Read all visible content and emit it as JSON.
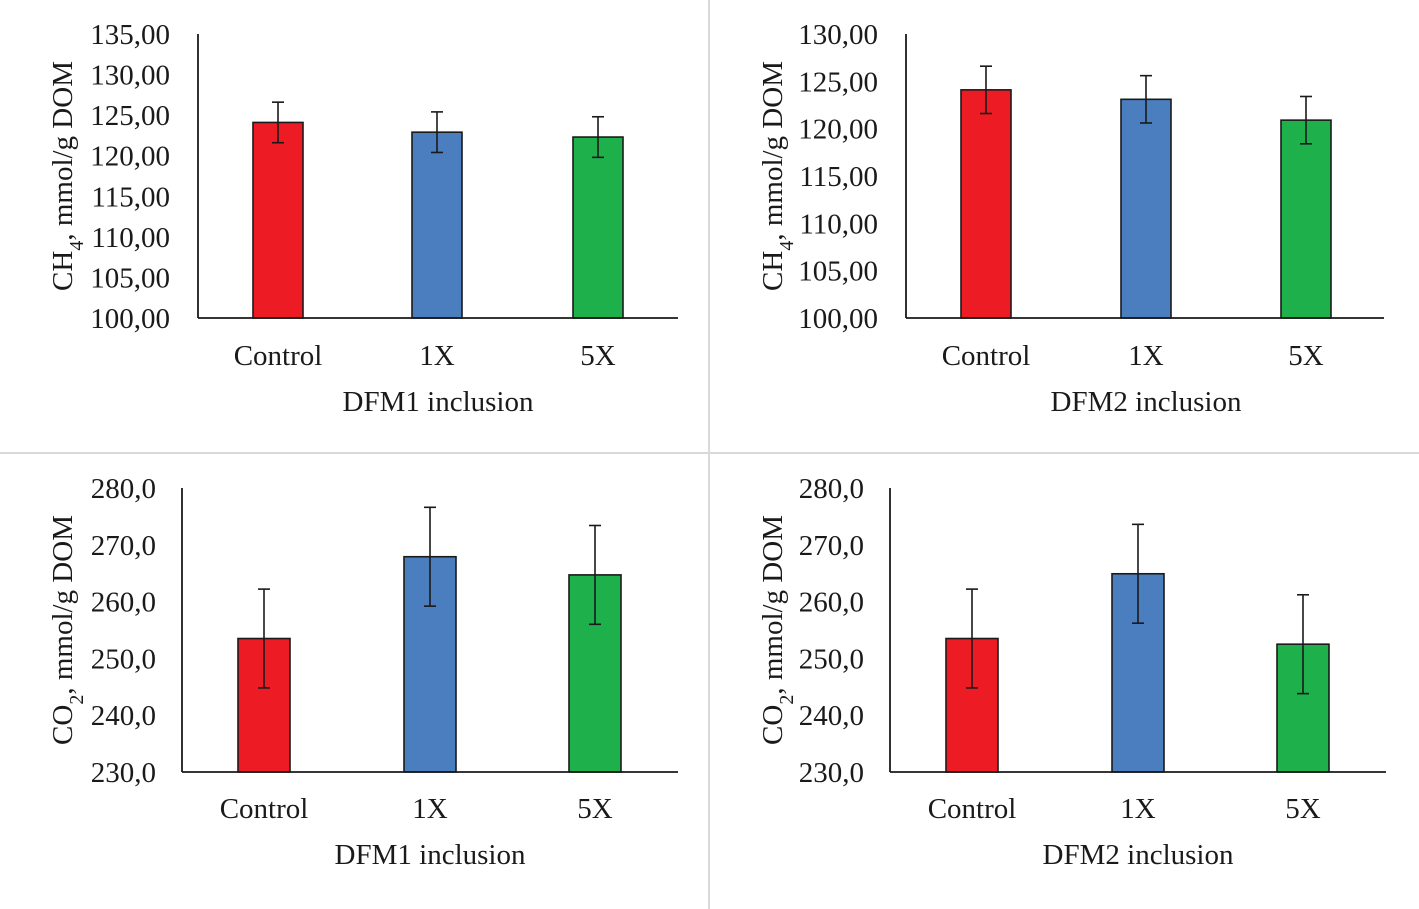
{
  "chart_data": [
    {
      "type": "bar",
      "panel": "top-left",
      "title": "",
      "categories": [
        "Control",
        "1X",
        "5X"
      ],
      "values": [
        124.1,
        122.9,
        122.3
      ],
      "errors": [
        2.5,
        2.5,
        2.5
      ],
      "colors": [
        "#ED1C24",
        "#4A7EBF",
        "#1DB04B"
      ],
      "ylim": [
        100,
        135
      ],
      "yticks": [
        "100,00",
        "105,00",
        "110,00",
        "115,00",
        "120,00",
        "125,00",
        "130,00",
        "135,00"
      ],
      "ylabel_main": "CH",
      "ylabel_sub": "4",
      "ylabel_rest": ", mmol/g DOM",
      "xlabel": "DFM1 inclusion",
      "grid": false
    },
    {
      "type": "bar",
      "panel": "top-right",
      "title": "",
      "categories": [
        "Control",
        "1X",
        "5X"
      ],
      "values": [
        124.1,
        123.1,
        120.9
      ],
      "errors": [
        2.5,
        2.5,
        2.5
      ],
      "colors": [
        "#ED1C24",
        "#4A7EBF",
        "#1DB04B"
      ],
      "ylim": [
        100,
        130
      ],
      "yticks": [
        "100,00",
        "105,00",
        "110,00",
        "115,00",
        "120,00",
        "125,00",
        "130,00"
      ],
      "ylabel_main": "CH",
      "ylabel_sub": "4",
      "ylabel_rest": ", mmol/g DOM",
      "xlabel": "DFM2 inclusion",
      "grid": false
    },
    {
      "type": "bar",
      "panel": "bottom-left",
      "title": "",
      "categories": [
        "Control",
        "1X",
        "5X"
      ],
      "values": [
        253.5,
        267.9,
        264.7
      ],
      "errors": [
        8.7,
        8.7,
        8.7
      ],
      "colors": [
        "#ED1C24",
        "#4A7EBF",
        "#1DB04B"
      ],
      "ylim": [
        230,
        280
      ],
      "yticks": [
        "230,0",
        "240,0",
        "250,0",
        "260,0",
        "270,0",
        "280,0"
      ],
      "ylabel_main": "CO",
      "ylabel_sub": "2",
      "ylabel_rest": ", mmol/g DOM",
      "xlabel": "DFM1 inclusion",
      "grid": false
    },
    {
      "type": "bar",
      "panel": "bottom-right",
      "title": "",
      "categories": [
        "Control",
        "1X",
        "5X"
      ],
      "values": [
        253.5,
        264.9,
        252.5
      ],
      "errors": [
        8.7,
        8.7,
        8.7
      ],
      "colors": [
        "#ED1C24",
        "#4A7EBF",
        "#1DB04B"
      ],
      "ylim": [
        230,
        280
      ],
      "yticks": [
        "230,0",
        "240,0",
        "250,0",
        "260,0",
        "270,0",
        "280,0"
      ],
      "ylabel_main": "CO",
      "ylabel_sub": "2",
      "ylabel_rest": ", mmol/g DOM",
      "xlabel": "DFM2 inclusion",
      "grid": false
    }
  ]
}
